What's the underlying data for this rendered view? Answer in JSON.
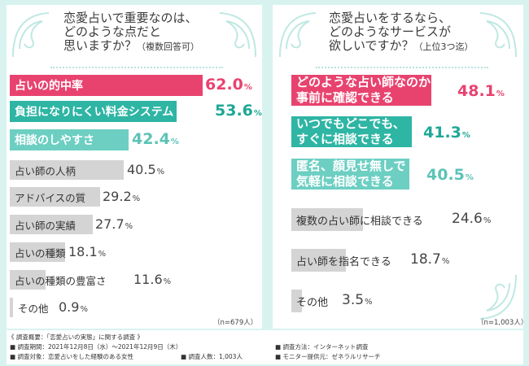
{
  "left": {
    "title_line1": "恋愛占いで重要なのは、",
    "title_line2": "どのような点だと",
    "title_line3": "思いますか？",
    "title_note": "（複数回答可）",
    "n_label": "（n=679人）",
    "unit": "%",
    "items": [
      {
        "label": "占いの的中率",
        "value": "62.0"
      },
      {
        "label": "負担になりにくい料金システム",
        "value": "53.6"
      },
      {
        "label": "相談のしやすさ",
        "value": "42.4"
      },
      {
        "label": "占い師の人柄",
        "value": "40.5"
      },
      {
        "label": "アドバイスの質",
        "value": "29.2"
      },
      {
        "label": "占い師の実績",
        "value": "27.7"
      },
      {
        "label": "占いの種類",
        "value": "18.1"
      },
      {
        "label": "占いの種類の豊富さ",
        "value": "11.6"
      },
      {
        "label": "その他",
        "value": "0.9"
      }
    ]
  },
  "right": {
    "title_line1": "恋愛占いをするなら、",
    "title_line2": "どのようなサービスが",
    "title_line3": "欲しいですか？",
    "title_note": "（上位3つ迄）",
    "n_label": "（n=1,003人）",
    "unit": "%",
    "items": [
      {
        "label1": "どのような占い師なのか",
        "label2": "事前に確認できる",
        "value": "48.1"
      },
      {
        "label1": "いつでもどこでも、",
        "label2": "すぐに相談できる",
        "value": "41.3"
      },
      {
        "label1": "匿名、顔見せ無しで",
        "label2": "気軽に相談できる",
        "value": "40.5"
      },
      {
        "label1": "複数の占い師に相談できる",
        "label2": "",
        "value": "24.6"
      },
      {
        "label1": "占い師を指名できる",
        "label2": "",
        "value": "18.7"
      },
      {
        "label1": "その他",
        "label2": "",
        "value": "3.5"
      }
    ]
  },
  "footer": {
    "heading": "《 調査概要：「恋愛占いの実態」に関する調査 》",
    "period": "■ 調査期間：2021年12月8日（水）〜2021年12月9日（木）",
    "target": "■ 調査対象：恋愛占いをした経験のある女性",
    "count": "■ 調査人数：1,003人",
    "method": "■ 調査方法：インターネット調査",
    "provider": "■ モニター提供元：ゼネラルリサーチ"
  },
  "chart_data": [
    {
      "type": "bar",
      "orientation": "horizontal",
      "title": "恋愛占いで重要なのは、どのような点だと思いますか？（複数回答可）",
      "categories": [
        "占いの的中率",
        "負担になりにくい料金システム",
        "相談のしやすさ",
        "占い師の人柄",
        "アドバイスの質",
        "占い師の実績",
        "占いの種類",
        "占いの種類の豊富さ",
        "その他"
      ],
      "values": [
        62.0,
        53.6,
        42.4,
        40.5,
        29.2,
        27.7,
        18.1,
        11.6,
        0.9
      ],
      "unit": "%",
      "note": "（n=679人）"
    },
    {
      "type": "bar",
      "orientation": "horizontal",
      "title": "恋愛占いをするなら、どのようなサービスが欲しいですか？（上位3つ迄）",
      "categories": [
        "どのような占い師なのか事前に確認できる",
        "いつでもどこでも、すぐに相談できる",
        "匿名、顔見せ無しで気軽に相談できる",
        "複数の占い師に相談できる",
        "占い師を指名できる",
        "その他"
      ],
      "values": [
        48.1,
        41.3,
        40.5,
        24.6,
        18.7,
        3.5
      ],
      "unit": "%",
      "note": "（n=1,003人）"
    }
  ]
}
